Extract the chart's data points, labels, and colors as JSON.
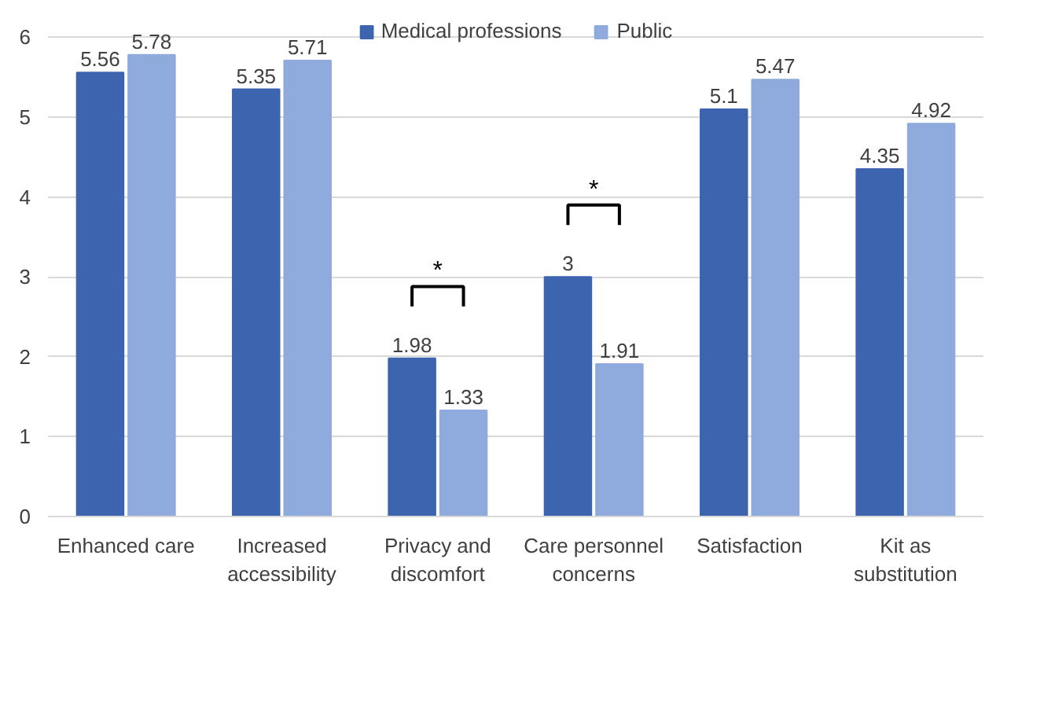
{
  "chart_data": {
    "type": "bar",
    "categories": [
      "Enhanced care",
      "Increased accessibility",
      "Privacy and discomfort",
      "Care personnel concerns",
      "Satisfaction",
      "Kit as substitution"
    ],
    "series": [
      {
        "name": "Medical professions",
        "color": "#3d64ae",
        "values": [
          5.56,
          5.35,
          1.98,
          3,
          5.1,
          4.35
        ]
      },
      {
        "name": "Public",
        "color": "#8faadc",
        "values": [
          5.78,
          5.71,
          1.33,
          1.91,
          5.47,
          4.92
        ]
      }
    ],
    "ylim": [
      0,
      6
    ],
    "yticks": [
      0,
      1,
      2,
      3,
      4,
      5,
      6
    ],
    "grid": "y",
    "legend": "top",
    "data_labels": true,
    "annotations": [
      {
        "text": "*",
        "x": "Privacy and discomfort",
        "y": 1.98
      },
      {
        "text": "*",
        "x": "Care personnel concerns",
        "y": 3
      }
    ]
  }
}
